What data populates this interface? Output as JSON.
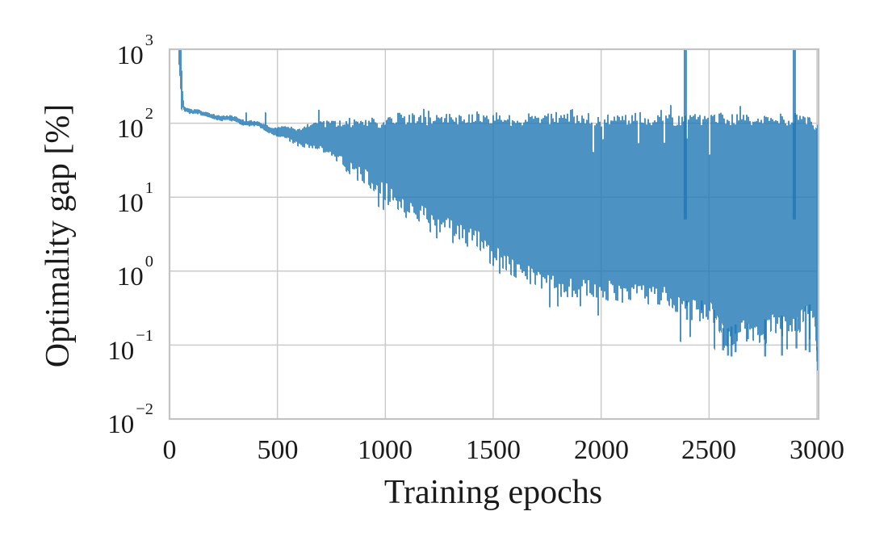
{
  "chart_data": {
    "type": "line",
    "title": "",
    "xlabel": "Training epochs",
    "ylabel": "Optimality gap [%]",
    "grid": true,
    "legend": false,
    "colors": {
      "line": "#1f77b4",
      "line_alpha": 0.8,
      "grid": "#cbcbcb",
      "spine": "#c3c3c3",
      "text": "#1a1a1a",
      "background": "#ffffff"
    },
    "x_axis": {
      "scale": "linear",
      "min": 0,
      "max": 3000,
      "ticks": [
        0,
        500,
        1000,
        1500,
        2000,
        2500,
        3000
      ],
      "tick_labels": [
        "0",
        "500",
        "1000",
        "1500",
        "2000",
        "2500",
        "3000"
      ]
    },
    "y_axis": {
      "scale": "log",
      "min": 0.01,
      "max": 1000,
      "tick_decades": [
        3,
        2,
        1,
        0,
        -1,
        -2
      ],
      "ticks": [
        {
          "base": "10",
          "exp": "3"
        },
        {
          "base": "10",
          "exp": "2"
        },
        {
          "base": "10",
          "exp": "1"
        },
        {
          "base": "10",
          "exp": "0"
        },
        {
          "base": "10",
          "exp": "−1"
        },
        {
          "base": "10",
          "exp": "−2"
        }
      ]
    },
    "series": [
      {
        "name": "optimality-gap",
        "color": "#1f77b4",
        "alpha": 0.8,
        "start_epoch": 41,
        "noise_seed": 7,
        "envelope_comment": "control points [epoch, lower %, upper %] of the noisy band read from the figure",
        "envelope": [
          [
            41,
            700,
            1400
          ],
          [
            46,
            300,
            1400
          ],
          [
            52,
            170,
            900
          ],
          [
            58,
            152,
            320
          ],
          [
            66,
            148,
            170
          ],
          [
            100,
            142,
            160
          ],
          [
            135,
            136,
            152
          ],
          [
            150,
            128,
            145
          ],
          [
            210,
            118,
            135
          ],
          [
            270,
            106,
            122
          ],
          [
            330,
            97,
            111
          ],
          [
            400,
            88,
            101
          ],
          [
            460,
            78,
            93
          ],
          [
            520,
            66,
            89
          ],
          [
            600,
            55,
            88
          ],
          [
            700,
            44,
            96
          ],
          [
            800,
            31,
            97
          ],
          [
            900,
            21,
            102
          ],
          [
            1000,
            13,
            106
          ],
          [
            1100,
            8.0,
            112
          ],
          [
            1200,
            5.5,
            110
          ],
          [
            1300,
            4.2,
            116
          ],
          [
            1400,
            3.0,
            110
          ],
          [
            1500,
            1.8,
            116
          ],
          [
            1600,
            1.25,
            110
          ],
          [
            1700,
            0.9,
            116
          ],
          [
            1800,
            0.68,
            110
          ],
          [
            1900,
            0.6,
            114
          ],
          [
            2000,
            0.62,
            110
          ],
          [
            2100,
            0.55,
            114
          ],
          [
            2200,
            0.56,
            110
          ],
          [
            2300,
            0.5,
            114
          ],
          [
            2400,
            0.32,
            110
          ],
          [
            2500,
            0.33,
            112
          ],
          [
            2570,
            0.13,
            110
          ],
          [
            2650,
            0.17,
            113
          ],
          [
            2720,
            0.15,
            110
          ],
          [
            2800,
            0.22,
            113
          ],
          [
            2900,
            0.18,
            110
          ],
          [
            2950,
            0.28,
            106
          ],
          [
            2985,
            0.3,
            95
          ],
          [
            3005,
            0.06,
            82
          ]
        ],
        "top_spikes_epochs": [
          2390,
          2895
        ],
        "dips": [
          [
            2398,
            0.22
          ],
          [
            2466,
            0.27
          ],
          [
            2523,
            0.2
          ],
          [
            2565,
            0.085
          ],
          [
            2588,
            0.072
          ],
          [
            2604,
            0.07
          ],
          [
            2623,
            0.08
          ],
          [
            2680,
            0.12
          ],
          [
            2760,
            0.07
          ],
          [
            2838,
            0.072
          ],
          [
            2905,
            0.09
          ],
          [
            2948,
            0.085
          ],
          [
            2966,
            0.08
          ],
          [
            3002,
            0.06
          ]
        ]
      }
    ]
  }
}
